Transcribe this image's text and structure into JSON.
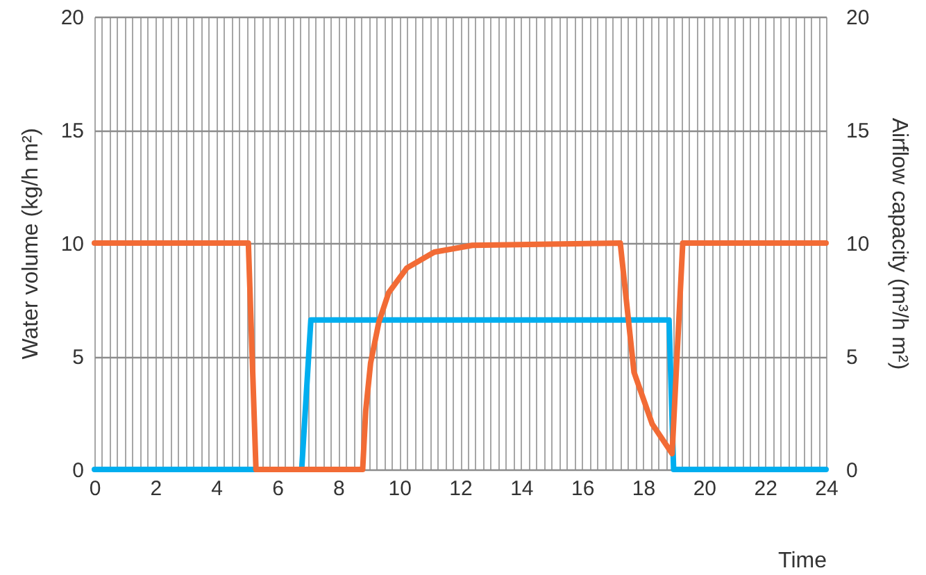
{
  "chart_data": {
    "type": "line",
    "xlabel": "Time",
    "ylabel": "Water volume (kg/h m²)",
    "y2label": "Airflow capacity (m³/h m²)",
    "grid": true,
    "line_style": "solid",
    "xlim": [
      0,
      24
    ],
    "ylim": [
      0,
      20
    ],
    "yticks": [
      0,
      5,
      10,
      15,
      20
    ],
    "y2lim": [
      0,
      20
    ],
    "y2ticks": [
      0,
      5,
      10,
      15,
      20
    ],
    "xticks": [
      0,
      {
        "value": 0.25,
        "label": null
      },
      {
        "value": 0.5,
        "label": null
      },
      {
        "value": 0.75,
        "label": null
      },
      {
        "value": 1,
        "label": null
      },
      {
        "value": 1.25,
        "label": null
      },
      {
        "value": 1.5,
        "label": null
      },
      {
        "value": 1.75,
        "label": null
      },
      2,
      {
        "value": 2.25,
        "label": null
      },
      {
        "value": 2.5,
        "label": null
      },
      {
        "value": 2.75,
        "label": null
      },
      {
        "value": 3,
        "label": null
      },
      {
        "value": 3.25,
        "label": null
      },
      {
        "value": 3.5,
        "label": null
      },
      {
        "value": 3.75,
        "label": null
      },
      4,
      {
        "value": 4.25,
        "label": null
      },
      {
        "value": 4.5,
        "label": null
      },
      {
        "value": 4.75,
        "label": null
      },
      {
        "value": 5,
        "label": null
      },
      {
        "value": 5.25,
        "label": null
      },
      {
        "value": 5.5,
        "label": null
      },
      {
        "value": 5.75,
        "label": null
      },
      6,
      {
        "value": 6.25,
        "label": null
      },
      {
        "value": 6.5,
        "label": null
      },
      {
        "value": 6.75,
        "label": null
      },
      {
        "value": 7,
        "label": null
      },
      {
        "value": 7.25,
        "label": null
      },
      {
        "value": 7.5,
        "label": null
      },
      {
        "value": 7.75,
        "label": null
      },
      8,
      {
        "value": 8.25,
        "label": null
      },
      {
        "value": 8.5,
        "label": null
      },
      {
        "value": 8.75,
        "label": null
      },
      {
        "value": 9,
        "label": null
      },
      {
        "value": 9.25,
        "label": null
      },
      {
        "value": 9.5,
        "label": null
      },
      {
        "value": 9.75,
        "label": null
      },
      10,
      {
        "value": 10.25,
        "label": null
      },
      {
        "value": 10.5,
        "label": null
      },
      {
        "value": 10.75,
        "label": null
      },
      {
        "value": 11,
        "label": null
      },
      {
        "value": 11.25,
        "label": null
      },
      {
        "value": 11.5,
        "label": null
      },
      {
        "value": 11.75,
        "label": null
      },
      12,
      {
        "value": 12.25,
        "label": null
      },
      {
        "value": 12.5,
        "label": null
      },
      {
        "value": 12.75,
        "label": null
      },
      {
        "value": 13,
        "label": null
      },
      {
        "value": 13.25,
        "label": null
      },
      {
        "value": 13.5,
        "label": null
      },
      {
        "value": 13.75,
        "label": null
      },
      14,
      {
        "value": 14.25,
        "label": null
      },
      {
        "value": 14.5,
        "label": null
      },
      {
        "value": 14.75,
        "label": null
      },
      {
        "value": 15,
        "label": null
      },
      {
        "value": 15.25,
        "label": null
      },
      {
        "value": 15.5,
        "label": null
      },
      {
        "value": 15.75,
        "label": null
      },
      16,
      {
        "value": 16.25,
        "label": null
      },
      {
        "value": 16.5,
        "label": null
      },
      {
        "value": 16.75,
        "label": null
      },
      {
        "value": 17,
        "label": null
      },
      {
        "value": 17.25,
        "label": null
      },
      {
        "value": 17.5,
        "label": null
      },
      {
        "value": 17.75,
        "label": null
      },
      18,
      {
        "value": 18.25,
        "label": null
      },
      {
        "value": 18.5,
        "label": null
      },
      {
        "value": 18.75,
        "label": null
      },
      {
        "value": 19,
        "label": null
      },
      {
        "value": 19.25,
        "label": null
      },
      {
        "value": 19.5,
        "label": null
      },
      {
        "value": 19.75,
        "label": null
      },
      20,
      {
        "value": 20.25,
        "label": null
      },
      {
        "value": 20.5,
        "label": null
      },
      {
        "value": 20.75,
        "label": null
      },
      {
        "value": 21,
        "label": null
      },
      {
        "value": 21.25,
        "label": null
      },
      {
        "value": 21.5,
        "label": null
      },
      {
        "value": 21.75,
        "label": null
      },
      22,
      {
        "value": 22.25,
        "label": null
      },
      {
        "value": 22.5,
        "label": null
      },
      {
        "value": 22.75,
        "label": null
      },
      {
        "value": 23,
        "label": null
      },
      {
        "value": 23.25,
        "label": null
      },
      {
        "value": 23.5,
        "label": null
      },
      {
        "value": 23.75,
        "label": null
      },
      24
    ],
    "series": [
      {
        "color": "#00aeef",
        "axis": "y2",
        "x": [
          0,
          6.8,
          7.1,
          18.85,
          19.0,
          24
        ],
        "values": [
          0,
          0,
          6.6,
          6.6,
          0,
          0
        ]
      },
      {
        "color": "#f26b35",
        "x": [
          0,
          5.05,
          5.3,
          8.8,
          8.9,
          9.06,
          9.33,
          9.65,
          10.25,
          11.15,
          12.4,
          17.25,
          17.7,
          18.3,
          18.95,
          19.3,
          24
        ],
        "values": [
          10,
          10,
          0,
          0,
          2.6,
          4.7,
          6.5,
          7.8,
          8.9,
          9.6,
          9.9,
          10,
          4.3,
          2.0,
          0.7,
          10,
          10
        ]
      }
    ]
  }
}
